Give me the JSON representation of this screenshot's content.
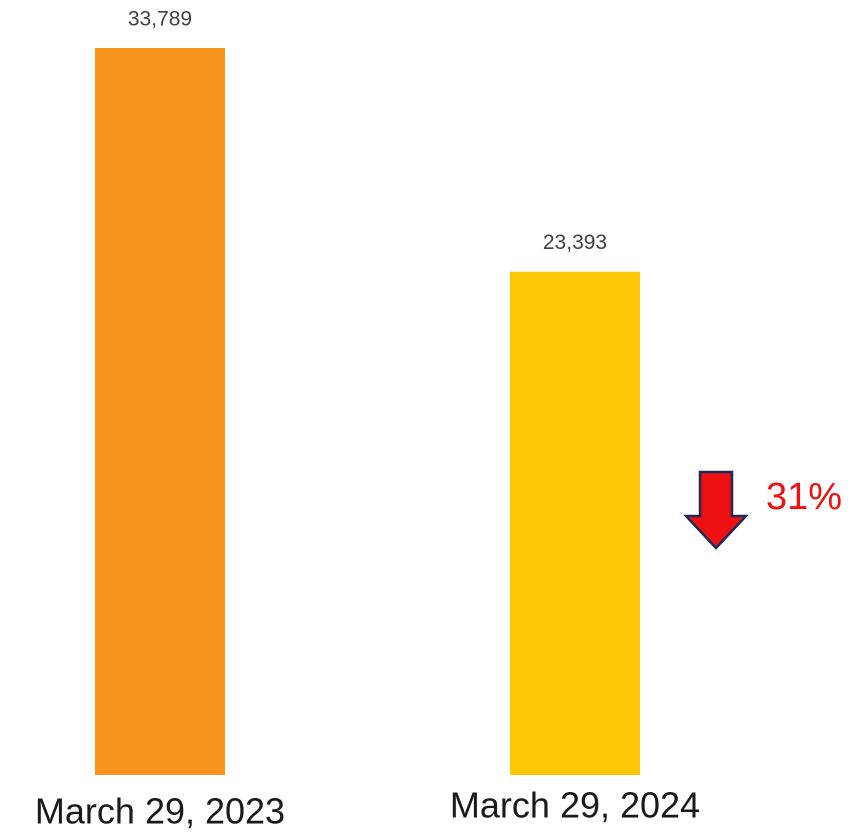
{
  "chart_data": {
    "type": "bar",
    "categories": [
      "March 29, 2023",
      "March 29, 2024"
    ],
    "values": [
      33789,
      23393
    ],
    "value_labels": [
      "33,789",
      "23,393"
    ],
    "colors": [
      "#f7941d",
      "#fcc706"
    ],
    "annotation": "31%"
  }
}
